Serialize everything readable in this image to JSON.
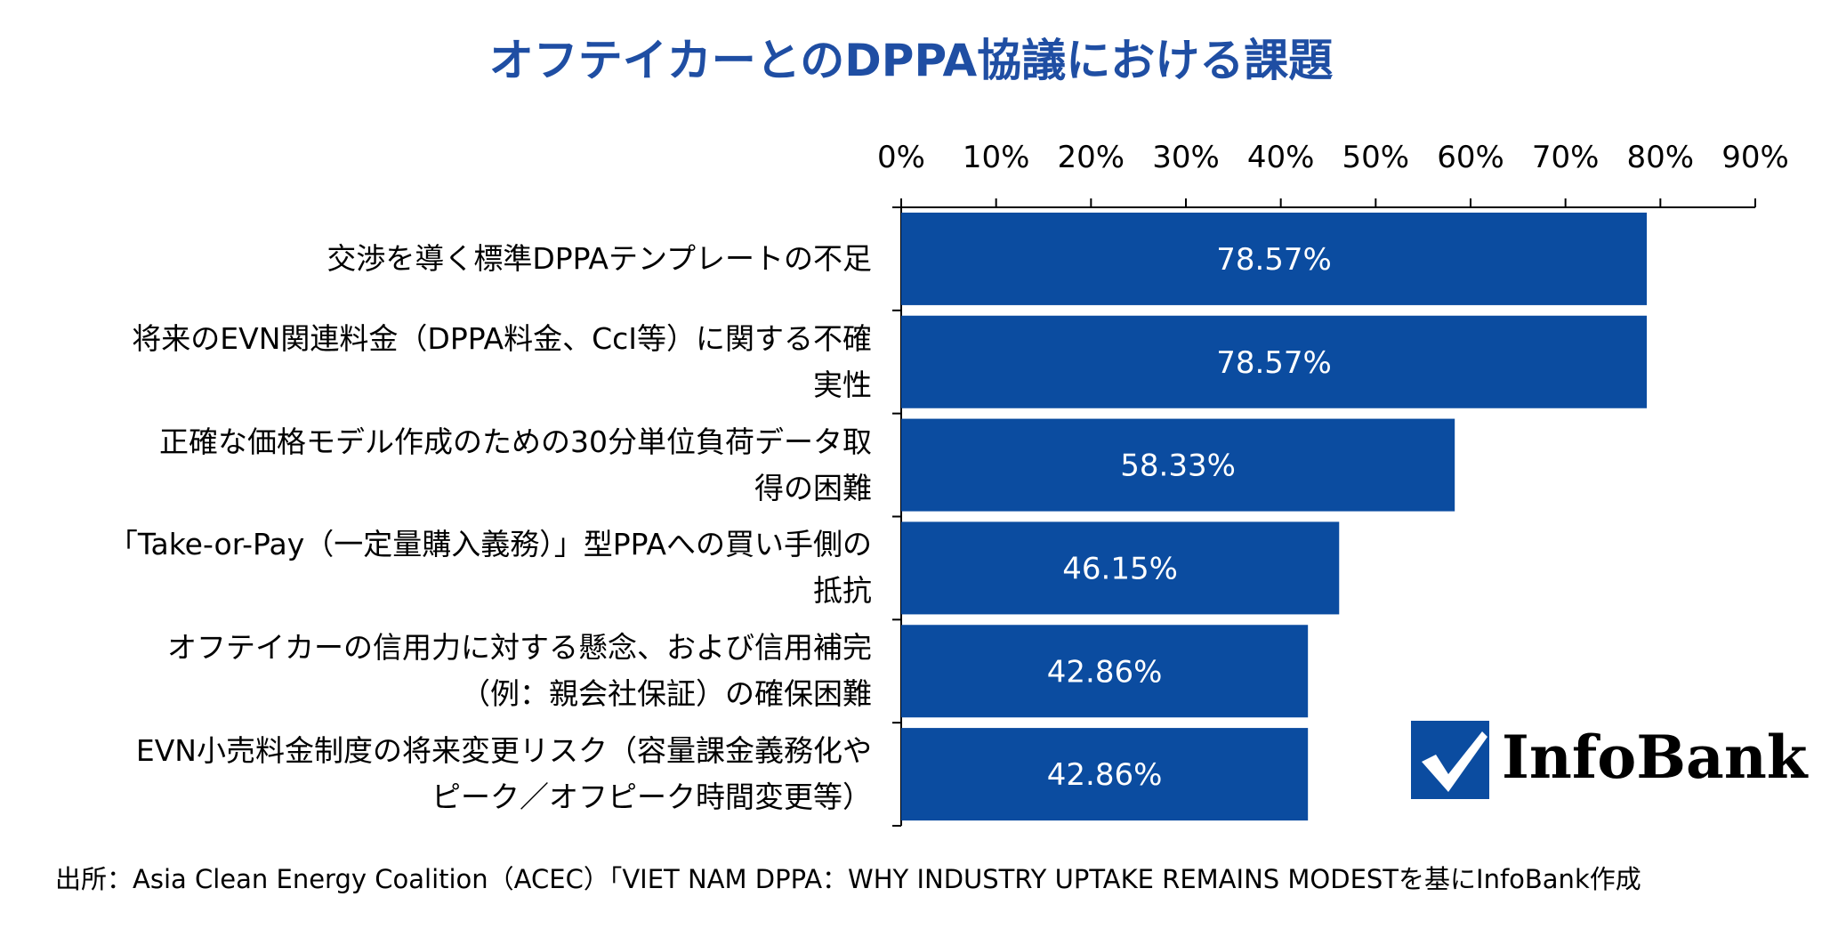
{
  "chart_data": {
    "type": "bar",
    "orientation": "horizontal",
    "title": "オフテイカーとのDPPA協議における課題",
    "categories": [
      [
        "交渉を導く標準DPPAテンプレートの不足"
      ],
      [
        "将来のEVN関連料金（DPPA料金、CcI等）に関する不確",
        "実性"
      ],
      [
        "正確な価格モデル作成のための30分単位負荷データ取",
        "得の困難"
      ],
      [
        "「Take-or-Pay（一定量購入義務）」型PPAへの買い手側の",
        "抵抗"
      ],
      [
        "オフテイカーの信用力に対する懸念、および信用補完",
        "（例：親会社保証）の確保困難"
      ],
      [
        "EVN小売料金制度の将来変更リスク（容量課金義務化や",
        "ピーク／オフピーク時間変更等）"
      ]
    ],
    "values": [
      78.57,
      78.57,
      58.33,
      46.15,
      42.86,
      42.86
    ],
    "data_labels": [
      "78.57%",
      "78.57%",
      "58.33%",
      "46.15%",
      "42.86%",
      "42.86%"
    ],
    "xlim": [
      0,
      90
    ],
    "x_ticks": [
      "0%",
      "10%",
      "20%",
      "30%",
      "40%",
      "50%",
      "60%",
      "70%",
      "80%",
      "90%"
    ],
    "x_axis_position": "top",
    "bar_color": "#0b4ca0",
    "grid": false
  },
  "logo": {
    "text": "InfoBank",
    "mark_color": "#0b4ca0"
  },
  "source": "出所：Asia Clean Energy Coalition（ACEC）「VIET NAM DPPA：WHY INDUSTRY UPTAKE REMAINS MODESTを基にInfoBank作成"
}
